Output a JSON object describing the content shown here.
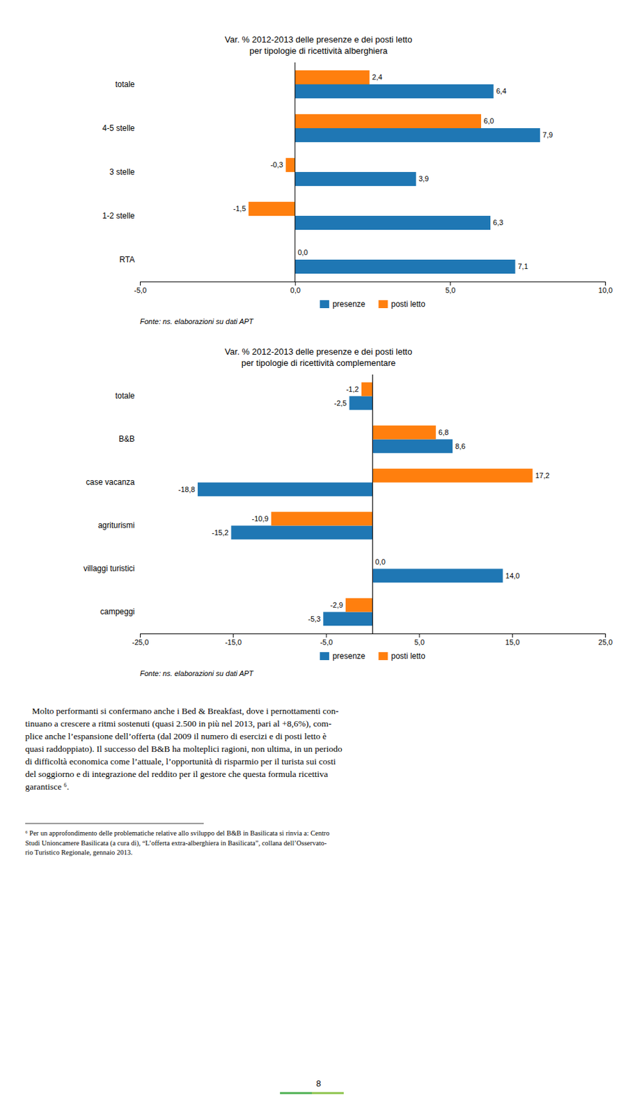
{
  "chart_data": [
    {
      "type": "bar",
      "orientation": "horizontal",
      "title": "Var. % 2012-2013 delle presenze e dei posti letto",
      "subtitle": "per tipologie di ricettività alberghiera",
      "categories": [
        "totale",
        "4-5 stelle",
        "3 stelle",
        "1-2 stelle",
        "RTA"
      ],
      "series": [
        {
          "name": "presenze",
          "values": [
            6.4,
            7.9,
            3.9,
            6.3,
            7.1
          ],
          "value_labels": [
            "6,4",
            "7,9",
            "3,9",
            "6,3",
            "7,1"
          ]
        },
        {
          "name": "posti letto",
          "values": [
            2.4,
            6.0,
            -0.3,
            -1.5,
            0.0
          ],
          "value_labels": [
            "2,4",
            "6,0",
            "-0,3",
            "-1,5",
            "0,0"
          ]
        }
      ],
      "xlim": [
        -5.0,
        10.0
      ],
      "xticks": [
        {
          "value": -5.0,
          "label": "-5,0"
        },
        {
          "value": 0.0,
          "label": "0,0"
        },
        {
          "value": 5.0,
          "label": "5,0"
        },
        {
          "value": 10.0,
          "label": "10,0"
        }
      ],
      "data_labels": true,
      "grid": false,
      "legend": "bottom",
      "annotations": [
        "Fonte: ns. elaborazioni su dati APT"
      ]
    },
    {
      "type": "bar",
      "orientation": "horizontal",
      "title": "Var. % 2012-2013 delle presenze e dei posti letto",
      "subtitle": "per tipologie di ricettività complementare",
      "categories": [
        "totale",
        "B&B",
        "case vacanza",
        "agriturismi",
        "villaggi turistici",
        "campeggi"
      ],
      "series": [
        {
          "name": "presenze",
          "values": [
            -2.5,
            8.6,
            -18.8,
            -15.2,
            14.0,
            -5.3
          ],
          "value_labels": [
            "-2,5",
            "8,6",
            "-18,8",
            "-15,2",
            "14,0",
            "-5,3"
          ]
        },
        {
          "name": "posti letto",
          "values": [
            -1.2,
            6.8,
            17.2,
            -10.9,
            0.0,
            -2.9
          ],
          "value_labels": [
            "-1,2",
            "6,8",
            "17,2",
            "-10,9",
            "0,0",
            "-2,9"
          ]
        }
      ],
      "xlim": [
        -25.0,
        25.0
      ],
      "xticks": [
        {
          "value": -25.0,
          "label": "-25,0"
        },
        {
          "value": -15.0,
          "label": "-15,0"
        },
        {
          "value": -5.0,
          "label": "-5,0"
        },
        {
          "value": 5.0,
          "label": "5,0"
        },
        {
          "value": 15.0,
          "label": "15,0"
        },
        {
          "value": 25.0,
          "label": "25,0"
        }
      ],
      "data_labels": true,
      "grid": false,
      "legend": "bottom",
      "annotations": [
        "Fonte: ns. elaborazioni su dati APT"
      ]
    }
  ],
  "body_text": [
    "   Molto performanti si confermano anche i Bed & Breakfast, dove i pernottamenti con-",
    "tinuano a crescere a ritmi sostenuti (quasi 2.500 in più nel 2013, pari al +8,6%), com-",
    "plice anche l’espansione dell’offerta (dal 2009 il numero di esercizi e di posti letto è",
    "quasi raddoppiato). Il successo del B&B ha molteplici ragioni, non ultima, in un periodo",
    "di difficoltà economica come l’attuale, l’opportunità di risparmio per il turista sui costi",
    "del soggiorno e di integrazione del reddito per il gestore che questa formula ricettiva",
    "garantisce ⁶."
  ],
  "footnote": [
    "⁶ Per un approfondimento delle problematiche relative allo sviluppo del B&B in Basilicata si rinvia a: Centro",
    "Studi Unioncamere Basilicata (a cura di), “L’offerta extra-alberghiera in Basilicata”, collana dell’Osservato-",
    "rio Turistico Regionale, gennaio 2013."
  ],
  "page_number": "8"
}
